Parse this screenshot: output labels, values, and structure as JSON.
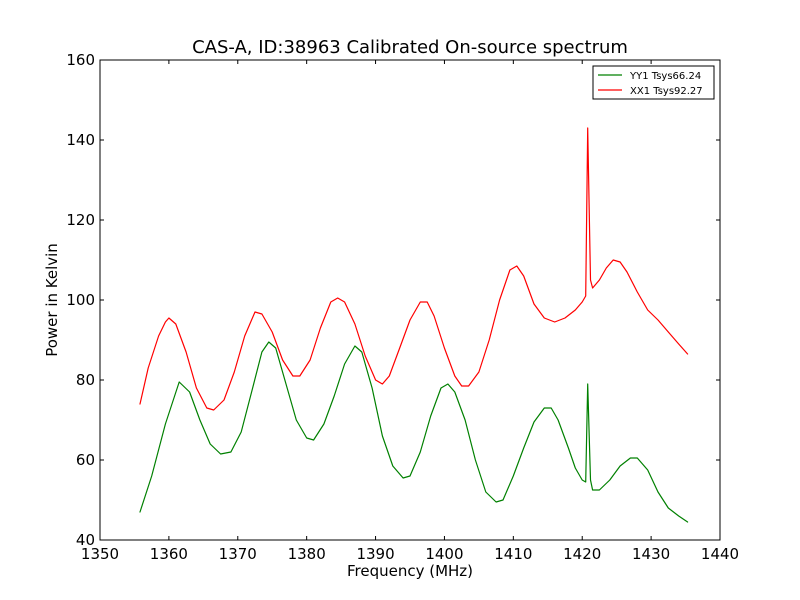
{
  "chart_data": {
    "type": "line",
    "title": "CAS-A, ID:38963 Calibrated On-source spectrum",
    "xlabel": "Frequency (MHz)",
    "ylabel": "Power in Kelvin",
    "xlim": [
      1350,
      1440
    ],
    "ylim": [
      40,
      160
    ],
    "xticks": [
      1350,
      1360,
      1370,
      1380,
      1390,
      1400,
      1410,
      1420,
      1430,
      1440
    ],
    "yticks": [
      40,
      60,
      80,
      100,
      120,
      140,
      160
    ],
    "grid": false,
    "legend_position": "top-right",
    "series": [
      {
        "name": "YY1 Tsys66.24",
        "color": "#008000",
        "points": [
          [
            1355.8,
            47
          ],
          [
            1357.5,
            56
          ],
          [
            1359.5,
            69
          ],
          [
            1361.5,
            79.5
          ],
          [
            1363.0,
            77
          ],
          [
            1364.5,
            70
          ],
          [
            1366.0,
            64
          ],
          [
            1367.5,
            61.5
          ],
          [
            1369.0,
            62
          ],
          [
            1370.5,
            67
          ],
          [
            1372.0,
            77
          ],
          [
            1373.5,
            87
          ],
          [
            1374.5,
            89.5
          ],
          [
            1375.5,
            88
          ],
          [
            1377.0,
            79
          ],
          [
            1378.5,
            70
          ],
          [
            1380.0,
            65.5
          ],
          [
            1381.0,
            65
          ],
          [
            1382.5,
            69
          ],
          [
            1384.0,
            76
          ],
          [
            1385.5,
            84
          ],
          [
            1387.0,
            88.5
          ],
          [
            1388.0,
            87
          ],
          [
            1389.5,
            78
          ],
          [
            1391.0,
            66
          ],
          [
            1392.5,
            58.5
          ],
          [
            1394.0,
            55.5
          ],
          [
            1395.0,
            56
          ],
          [
            1396.5,
            62
          ],
          [
            1398.0,
            71
          ],
          [
            1399.5,
            78
          ],
          [
            1400.5,
            79
          ],
          [
            1401.5,
            77
          ],
          [
            1403.0,
            70
          ],
          [
            1404.5,
            60
          ],
          [
            1406.0,
            52
          ],
          [
            1407.5,
            49.5
          ],
          [
            1408.5,
            50
          ],
          [
            1410.0,
            56
          ],
          [
            1411.5,
            63
          ],
          [
            1413.0,
            69.5
          ],
          [
            1414.5,
            73
          ],
          [
            1415.5,
            73
          ],
          [
            1416.5,
            70
          ],
          [
            1418.0,
            63
          ],
          [
            1419.0,
            58
          ],
          [
            1420.0,
            55
          ],
          [
            1420.5,
            54.5
          ],
          [
            1420.8,
            79
          ],
          [
            1421.2,
            55
          ],
          [
            1421.5,
            52.5
          ],
          [
            1422.5,
            52.5
          ],
          [
            1424.0,
            55
          ],
          [
            1425.5,
            58.5
          ],
          [
            1427.0,
            60.5
          ],
          [
            1428.0,
            60.5
          ],
          [
            1429.5,
            57.5
          ],
          [
            1431.0,
            52
          ],
          [
            1432.5,
            48
          ],
          [
            1434.0,
            46
          ],
          [
            1435.3,
            44.5
          ]
        ]
      },
      {
        "name": "XX1 Tsys92.27",
        "color": "#ff0000",
        "points": [
          [
            1355.8,
            74
          ],
          [
            1357.0,
            83
          ],
          [
            1358.5,
            91
          ],
          [
            1359.5,
            94.5
          ],
          [
            1360.0,
            95.5
          ],
          [
            1361.0,
            94
          ],
          [
            1362.5,
            87
          ],
          [
            1364.0,
            78
          ],
          [
            1365.5,
            73
          ],
          [
            1366.5,
            72.5
          ],
          [
            1368.0,
            75
          ],
          [
            1369.5,
            82
          ],
          [
            1371.0,
            91
          ],
          [
            1372.5,
            97
          ],
          [
            1373.5,
            96.5
          ],
          [
            1375.0,
            92
          ],
          [
            1376.5,
            85
          ],
          [
            1378.0,
            81
          ],
          [
            1379.0,
            81
          ],
          [
            1380.5,
            85
          ],
          [
            1382.0,
            93
          ],
          [
            1383.5,
            99.5
          ],
          [
            1384.5,
            100.5
          ],
          [
            1385.5,
            99.5
          ],
          [
            1387.0,
            94
          ],
          [
            1388.5,
            86
          ],
          [
            1390.0,
            80
          ],
          [
            1391.0,
            79
          ],
          [
            1392.0,
            81
          ],
          [
            1393.5,
            88
          ],
          [
            1395.0,
            95
          ],
          [
            1396.5,
            99.5
          ],
          [
            1397.5,
            99.5
          ],
          [
            1398.5,
            96
          ],
          [
            1400.0,
            88
          ],
          [
            1401.5,
            81
          ],
          [
            1402.5,
            78.5
          ],
          [
            1403.5,
            78.5
          ],
          [
            1405.0,
            82
          ],
          [
            1406.5,
            90
          ],
          [
            1408.0,
            100
          ],
          [
            1409.5,
            107.5
          ],
          [
            1410.5,
            108.5
          ],
          [
            1411.5,
            106
          ],
          [
            1413.0,
            99
          ],
          [
            1414.5,
            95.5
          ],
          [
            1416.0,
            94.5
          ],
          [
            1417.5,
            95.5
          ],
          [
            1419.0,
            97.5
          ],
          [
            1420.0,
            99.5
          ],
          [
            1420.5,
            101
          ],
          [
            1420.8,
            143
          ],
          [
            1421.2,
            105
          ],
          [
            1421.5,
            103
          ],
          [
            1422.5,
            105
          ],
          [
            1423.5,
            108
          ],
          [
            1424.5,
            110
          ],
          [
            1425.5,
            109.5
          ],
          [
            1426.5,
            107
          ],
          [
            1428.0,
            102
          ],
          [
            1429.5,
            97.5
          ],
          [
            1431.0,
            95
          ],
          [
            1432.5,
            92
          ],
          [
            1434.0,
            89
          ],
          [
            1435.3,
            86.5
          ]
        ]
      }
    ]
  }
}
